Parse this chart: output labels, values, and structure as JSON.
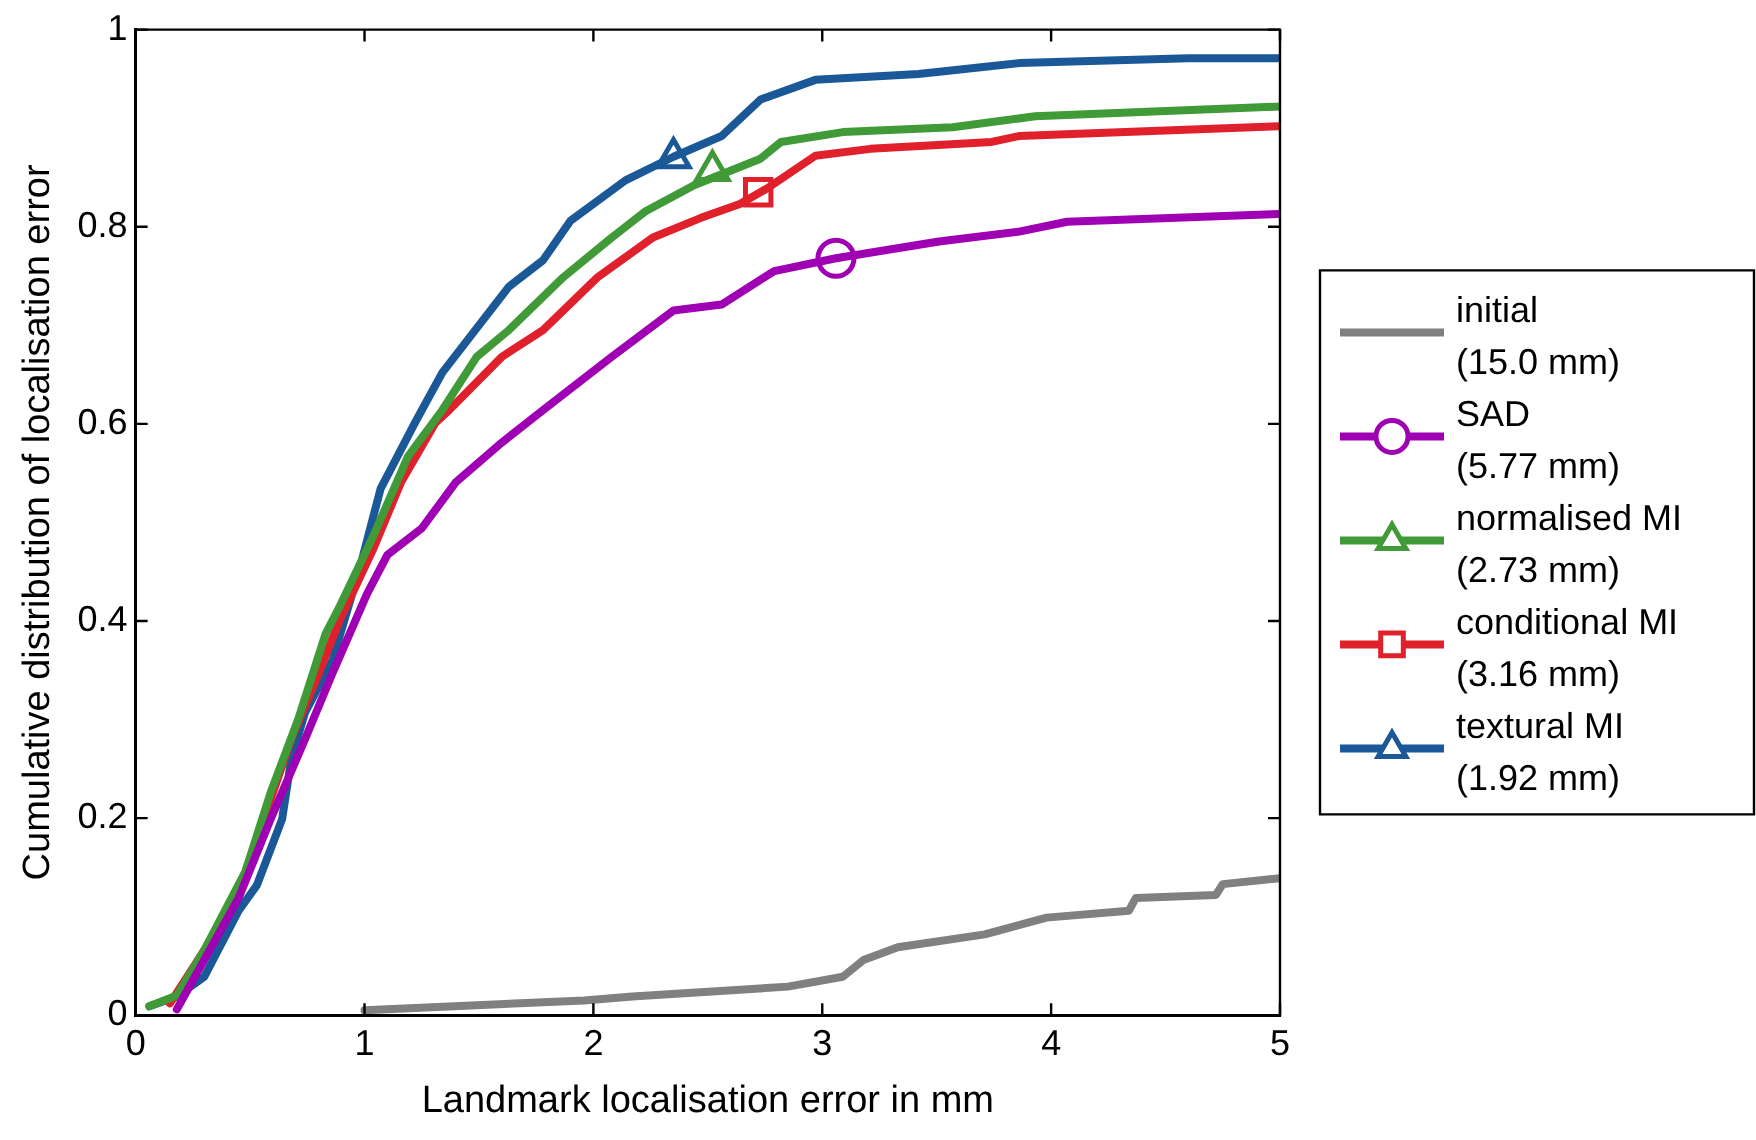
{
  "chart_data": {
    "type": "line",
    "xlabel": "Landmark localisation error in mm",
    "ylabel": "Cumulative distribution of localisation error",
    "xlim": [
      0,
      5
    ],
    "ylim": [
      0,
      1
    ],
    "xticks": [
      0,
      1,
      2,
      3,
      4,
      5
    ],
    "yticks": [
      0,
      0.2,
      0.4,
      0.6,
      0.8,
      1
    ],
    "grid": false,
    "legend": "right",
    "line_style": "solid",
    "series": [
      {
        "name": "initial (15.0 mm)",
        "color": "#808080",
        "x": [
          1.0,
          1.96,
          2.17,
          2.85,
          3.09,
          3.18,
          3.33,
          3.71,
          3.98,
          4.34,
          4.37,
          4.72,
          4.75,
          5.0
        ],
        "values": [
          0.005,
          0.015,
          0.019,
          0.029,
          0.039,
          0.056,
          0.069,
          0.082,
          0.099,
          0.106,
          0.119,
          0.122,
          0.133,
          0.139
        ]
      },
      {
        "name": "SAD (5.77 mm)",
        "color": "#a000b4",
        "x": [
          0.18,
          0.45,
          0.59,
          0.74,
          0.86,
          1.01,
          1.1,
          1.25,
          1.4,
          1.6,
          1.78,
          2.08,
          2.35,
          2.56,
          2.79,
          3.06,
          3.51,
          3.86,
          4.07,
          5.0
        ],
        "values": [
          0.006,
          0.119,
          0.199,
          0.28,
          0.347,
          0.427,
          0.467,
          0.494,
          0.541,
          0.581,
          0.614,
          0.668,
          0.715,
          0.721,
          0.755,
          0.768,
          0.785,
          0.795,
          0.805,
          0.813
        ]
      },
      {
        "name": "normalised MI (2.73 mm)",
        "color": "#3f9a37",
        "x": [
          0.06,
          0.18,
          0.3,
          0.48,
          0.59,
          0.71,
          0.83,
          0.89,
          1.04,
          1.19,
          1.34,
          1.49,
          1.63,
          1.87,
          2.08,
          2.23,
          2.44,
          2.73,
          2.82,
          3.09,
          3.57,
          3.93,
          5.0
        ],
        "values": [
          0.009,
          0.02,
          0.066,
          0.146,
          0.226,
          0.3,
          0.387,
          0.414,
          0.487,
          0.567,
          0.614,
          0.668,
          0.695,
          0.749,
          0.789,
          0.816,
          0.842,
          0.869,
          0.886,
          0.896,
          0.901,
          0.912,
          0.922
        ]
      },
      {
        "name": "conditional MI (3.16 mm)",
        "color": "#e0202a",
        "x": [
          0.15,
          0.3,
          0.45,
          0.56,
          0.68,
          0.8,
          0.89,
          1.04,
          1.16,
          1.31,
          1.37,
          1.6,
          1.78,
          2.02,
          2.26,
          2.47,
          2.64,
          2.76,
          2.97,
          3.21,
          3.74,
          3.86,
          5.0
        ],
        "values": [
          0.012,
          0.066,
          0.126,
          0.199,
          0.28,
          0.347,
          0.4,
          0.474,
          0.541,
          0.601,
          0.614,
          0.668,
          0.695,
          0.749,
          0.789,
          0.809,
          0.823,
          0.839,
          0.872,
          0.879,
          0.886,
          0.892,
          0.902
        ]
      },
      {
        "name": "textural MI (1.92 mm)",
        "color": "#1a5897",
        "x": [
          0.06,
          0.18,
          0.3,
          0.45,
          0.53,
          0.64,
          0.68,
          0.74,
          0.86,
          0.98,
          1.07,
          1.22,
          1.34,
          1.52,
          1.63,
          1.78,
          1.9,
          2.14,
          2.35,
          2.56,
          2.73,
          2.97,
          3.42,
          3.86,
          4.6,
          5.0
        ],
        "values": [
          0.009,
          0.019,
          0.039,
          0.106,
          0.132,
          0.199,
          0.26,
          0.307,
          0.36,
          0.454,
          0.534,
          0.601,
          0.652,
          0.706,
          0.739,
          0.766,
          0.806,
          0.847,
          0.871,
          0.892,
          0.929,
          0.949,
          0.955,
          0.966,
          0.971,
          0.971
        ]
      },
      {
        "type": "scatter",
        "color": "#a000b4",
        "marker": "circle",
        "x": [
          3.06
        ],
        "values": [
          0.768
        ]
      },
      {
        "type": "scatter",
        "color": "#3f9a37",
        "marker": "triangle",
        "x": [
          2.52
        ],
        "values": [
          0.857
        ]
      },
      {
        "type": "scatter",
        "color": "#e0202a",
        "marker": "square",
        "x": [
          2.72
        ],
        "values": [
          0.835
        ]
      },
      {
        "type": "scatter",
        "color": "#1a5897",
        "marker": "triangle",
        "x": [
          2.35
        ],
        "values": [
          0.87
        ]
      }
    ]
  }
}
